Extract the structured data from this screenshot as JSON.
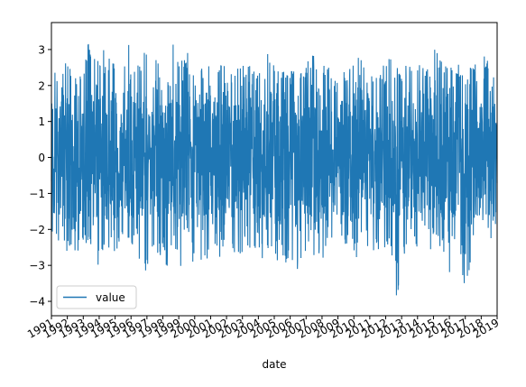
{
  "chart_data": {
    "type": "line",
    "xlabel": "date",
    "ylabel": "",
    "title": "",
    "x_range": [
      "1991",
      "2019"
    ],
    "ylim": [
      -4.4,
      3.75
    ],
    "y_ticks": [
      3,
      2,
      1,
      0,
      -1,
      -2,
      -3,
      -4
    ],
    "y_tick_labels": [
      "3",
      "2",
      "1",
      "0",
      "−1",
      "−2",
      "−3",
      "−4"
    ],
    "x_tick_labels": [
      "1991",
      "1992",
      "1993",
      "1994",
      "1995",
      "1996",
      "1997",
      "1998",
      "1999",
      "2000",
      "2001",
      "2002",
      "2003",
      "2004",
      "2005",
      "2006",
      "2007",
      "2008",
      "2009",
      "2010",
      "2011",
      "2012",
      "2013",
      "2014",
      "2015",
      "2016",
      "2017",
      "2018",
      "2019"
    ],
    "legend": {
      "placement": "lower-left",
      "entries": [
        "value"
      ]
    },
    "grid": false,
    "series": [
      {
        "name": "value",
        "color": "#1f77b4",
        "approx_upper_envelope": [
          2.8,
          2.2,
          2.7,
          2.4,
          2.6,
          3.35,
          2.5,
          3.15,
          2.7,
          2.6,
          3.3,
          2.4,
          3.0,
          2.6,
          3.1,
          2.7,
          3.3,
          2.9,
          2.6,
          2.3,
          2.7,
          2.4,
          2.9,
          2.4,
          2.5,
          2.6,
          2.7,
          2.4,
          3.1,
          2.8,
          2.4,
          2.6,
          2.2,
          2.5,
          3.0,
          2.5,
          2.6,
          2.3,
          2.4,
          2.5,
          2.8,
          2.6,
          2.4,
          2.5,
          2.9,
          2.3,
          2.7,
          2.5,
          2.6,
          2.4,
          3.25,
          2.6,
          2.5,
          2.7,
          2.4,
          2.6,
          3.25,
          2.5,
          2.2
        ],
        "approx_lower_envelope": [
          -2.2,
          -2.5,
          -2.6,
          -3.0,
          -2.4,
          -2.5,
          -3.1,
          -2.6,
          -3.2,
          -2.3,
          -2.4,
          -2.6,
          -3.6,
          -2.5,
          -2.7,
          -3.1,
          -2.4,
          -3.55,
          -3.3,
          -2.6,
          -3.15,
          -2.5,
          -2.8,
          -2.4,
          -2.7,
          -3.1,
          -2.5,
          -3.25,
          -2.6,
          -3.0,
          -3.2,
          -2.7,
          -3.25,
          -2.6,
          -2.8,
          -3.0,
          -2.5,
          -2.7,
          -2.4,
          -2.6,
          -2.9,
          -2.5,
          -2.6,
          -2.7,
          -2.5,
          -4.05,
          -2.6,
          -2.7,
          -2.8,
          -3.0,
          -2.5,
          -2.6,
          -3.75,
          -3.1,
          -3.7,
          -2.5,
          -2.3,
          -2.5,
          -2.0
        ]
      }
    ]
  }
}
